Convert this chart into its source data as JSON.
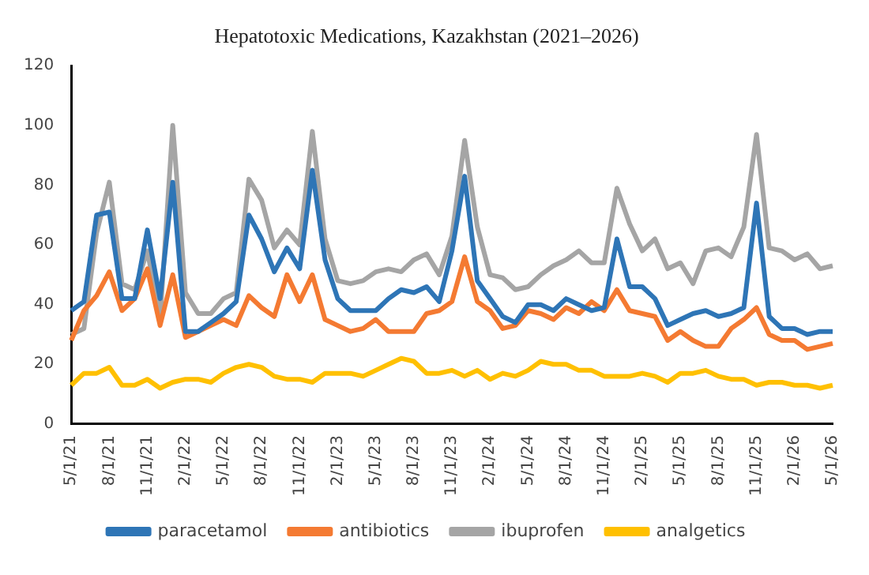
{
  "chart_data": {
    "type": "line",
    "title": "Hepatotoxic Medications, Kazakhstan (2021–2026)",
    "categories": [
      "5/1/21",
      null,
      null,
      "8/1/21",
      null,
      null,
      "11/1/21",
      null,
      null,
      "2/1/22",
      null,
      null,
      "5/1/22",
      null,
      null,
      "8/1/22",
      null,
      null,
      "11/1/22",
      null,
      null,
      "2/1/23",
      null,
      null,
      "5/1/23",
      null,
      null,
      "8/1/23",
      null,
      null,
      "11/1/23",
      null,
      null,
      "2/1/24",
      null,
      null,
      "5/1/24",
      null,
      null,
      "8/1/24",
      null,
      null,
      "11/1/24",
      null,
      null,
      "2/1/25",
      null,
      null,
      "5/1/25",
      null,
      null,
      "8/1/25",
      null,
      null,
      "11/1/25",
      null,
      null,
      "2/1/26",
      null,
      null,
      "5/1/26"
    ],
    "series": [
      {
        "name": "paracetamol",
        "color": "#2e75b6",
        "values": [
          38,
          41,
          70,
          71,
          42,
          42,
          65,
          42,
          81,
          31,
          31,
          34,
          37,
          41,
          70,
          62,
          51,
          59,
          52,
          85,
          55,
          42,
          38,
          38,
          38,
          42,
          45,
          44,
          46,
          41,
          58,
          83,
          48,
          42,
          36,
          34,
          40,
          40,
          38,
          42,
          40,
          38,
          39,
          62,
          46,
          46,
          42,
          33,
          35,
          37,
          38,
          36,
          37,
          39,
          74,
          36,
          32,
          32,
          30,
          31,
          31
        ]
      },
      {
        "name": "antibiotics",
        "color": "#f47a32",
        "values": [
          28,
          38,
          43,
          51,
          38,
          42,
          52,
          33,
          50,
          29,
          31,
          33,
          35,
          33,
          43,
          39,
          36,
          50,
          41,
          50,
          35,
          33,
          31,
          32,
          35,
          31,
          31,
          31,
          37,
          38,
          41,
          56,
          41,
          38,
          32,
          33,
          38,
          37,
          35,
          39,
          37,
          41,
          38,
          45,
          38,
          37,
          36,
          28,
          31,
          28,
          26,
          26,
          32,
          35,
          39,
          30,
          28,
          28,
          25,
          26,
          27
        ]
      },
      {
        "name": "ibuprofen",
        "color": "#a5a5a5",
        "values": [
          30,
          32,
          64,
          81,
          47,
          45,
          58,
          35,
          100,
          44,
          37,
          37,
          42,
          44,
          82,
          75,
          59,
          65,
          60,
          98,
          62,
          48,
          47,
          48,
          51,
          52,
          51,
          55,
          57,
          50,
          63,
          95,
          66,
          50,
          49,
          45,
          46,
          50,
          53,
          55,
          58,
          54,
          54,
          79,
          67,
          58,
          62,
          52,
          54,
          47,
          58,
          59,
          56,
          66,
          97,
          59,
          58,
          55,
          57,
          52,
          53
        ]
      },
      {
        "name": "analgetics",
        "color": "#ffc000",
        "values": [
          13,
          17,
          17,
          19,
          13,
          13,
          15,
          12,
          14,
          15,
          15,
          14,
          17,
          19,
          20,
          19,
          16,
          15,
          15,
          14,
          17,
          17,
          17,
          16,
          18,
          20,
          22,
          21,
          17,
          17,
          18,
          16,
          18,
          15,
          17,
          16,
          18,
          21,
          20,
          20,
          18,
          18,
          16,
          16,
          16,
          17,
          16,
          14,
          17,
          17,
          18,
          16,
          15,
          15,
          13,
          14,
          14,
          13,
          13,
          12,
          13
        ]
      }
    ],
    "ylim": [
      0,
      120
    ],
    "yticks": [
      0,
      20,
      40,
      60,
      80,
      100,
      120
    ],
    "grid": false,
    "legend": "bottom",
    "marker": "none",
    "line_style": "solid"
  }
}
